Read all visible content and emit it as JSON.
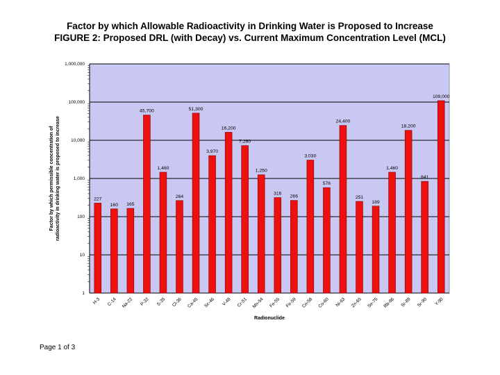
{
  "page": {
    "footer": "Page 1 of 3"
  },
  "chart_data": {
    "type": "bar",
    "title": "Factor by which Allowable Radioactivity in Drinking Water is Proposed to Increase",
    "subtitle": "FIGURE 2: Proposed DRL (with Decay) vs. Current Maximum Concentration Level (MCL)",
    "xlabel": "Radionuclide",
    "ylabel_lines": [
      "Factor by which permissible concentration of",
      "radioactivity in drinking water is proposed to increase"
    ],
    "yscale": "log",
    "ylim": [
      1,
      1000000
    ],
    "ytick_labels": [
      "1",
      "10",
      "100",
      "1,000",
      "10,000",
      "100,000",
      "1,000,000"
    ],
    "ytick_values": [
      1,
      10,
      100,
      1000,
      10000,
      100000,
      1000000
    ],
    "grid": true,
    "plot_bg": "#c8c8f2",
    "bar_color": "#ee0f0f",
    "categories": [
      "H-3",
      "C-14",
      "Na-22",
      "P-32",
      "S-35",
      "Cl-36",
      "Ca-45",
      "Sc-46",
      "V-48",
      "Cr-51",
      "Mn-54",
      "Fe-55",
      "Fe-59",
      "Co-58",
      "Co-60",
      "Ni-63",
      "Zn-65",
      "Se-75",
      "Rb-86",
      "Sr-89",
      "Sr-90",
      "Y-90"
    ],
    "values": [
      227,
      160,
      165,
      45700,
      1460,
      264,
      51300,
      3970,
      16200,
      7260,
      1250,
      316,
      266,
      3030,
      576,
      24400,
      251,
      189,
      1460,
      18200,
      841,
      109000
    ],
    "labels": [
      "227",
      "160",
      "165",
      "45,700",
      "1,460",
      "264",
      "51,300",
      "3,970",
      "16,200",
      "7,260",
      "1,250",
      "316",
      "266",
      "3,030",
      "576",
      "24,400",
      "251",
      "189",
      "1,460",
      "18,200",
      "841",
      "109,000"
    ]
  }
}
